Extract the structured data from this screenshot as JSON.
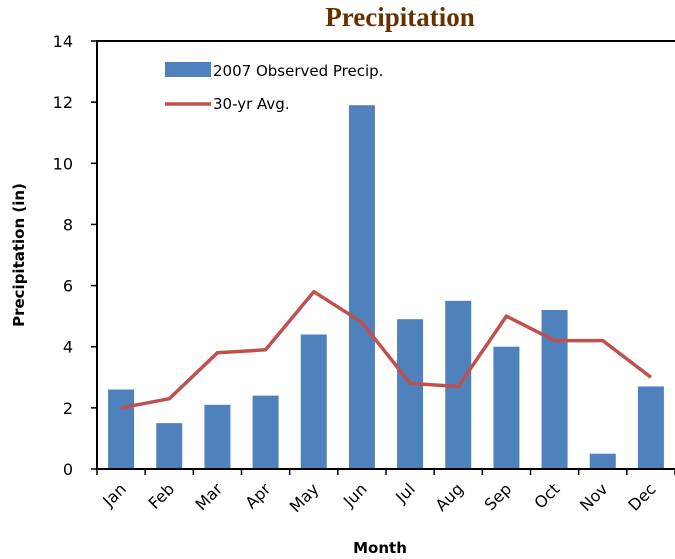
{
  "chart_data": {
    "type": "bar",
    "title": "Precipitation",
    "xlabel": "Month",
    "ylabel": "Precipitation (in)",
    "categories": [
      "Jan",
      "Feb",
      "Mar",
      "Apr",
      "May",
      "Jun",
      "Jul",
      "Aug",
      "Sep",
      "Oct",
      "Nov",
      "Dec"
    ],
    "ylim": [
      0,
      14
    ],
    "yticks": [
      0,
      2,
      4,
      6,
      8,
      10,
      12,
      14
    ],
    "grid": false,
    "legend_position": "top-left",
    "series": [
      {
        "name": "2007 Observed Precip.",
        "type": "bar",
        "color": "#4f81bd",
        "values": [
          2.6,
          1.5,
          2.1,
          2.4,
          4.4,
          11.9,
          4.9,
          5.5,
          4.0,
          5.2,
          0.5,
          2.7
        ]
      },
      {
        "name": "30-yr Avg.",
        "type": "line",
        "color": "#c0504d",
        "values": [
          2.0,
          2.3,
          3.8,
          3.9,
          5.8,
          4.8,
          2.8,
          2.7,
          5.0,
          4.2,
          4.2,
          3.0
        ]
      }
    ]
  }
}
